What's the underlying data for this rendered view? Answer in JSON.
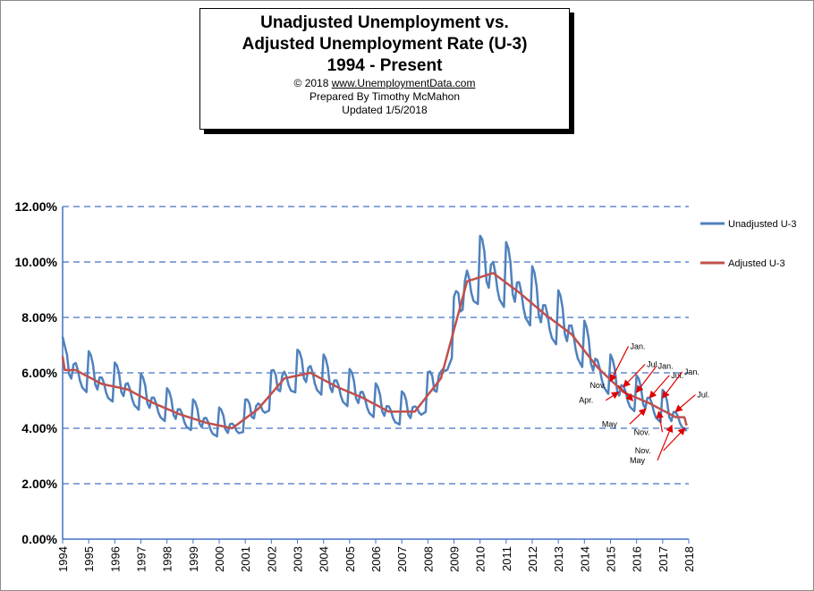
{
  "title": {
    "line1": "Unadjusted Unemployment vs.",
    "line2": "Adjusted Unemployment Rate (U-3)",
    "line3": "1994 - Present",
    "copyright": "© 2018 ",
    "url": "www.UnemploymentData.com",
    "prepared": "Prepared By Timothy McMahon",
    "updated": "Updated 1/5/2018"
  },
  "colors": {
    "unadjusted": "#4f81bd",
    "adjusted": "#c0504d",
    "grid": "#4472c4",
    "arrow": "#e00000"
  },
  "chart_data": {
    "type": "line",
    "xlim": [
      1994,
      2018
    ],
    "ylim": [
      0,
      12
    ],
    "y_ticks": [
      "0.00%",
      "2.00%",
      "4.00%",
      "6.00%",
      "8.00%",
      "10.00%",
      "12.00%"
    ],
    "x_ticks": [
      "1994",
      "1995",
      "1996",
      "1997",
      "1998",
      "1999",
      "2000",
      "2001",
      "2002",
      "2003",
      "2004",
      "2005",
      "2006",
      "2007",
      "2008",
      "2009",
      "2010",
      "2011",
      "2012",
      "2013",
      "2014",
      "2015",
      "2016",
      "2017",
      "2018"
    ],
    "grid": "horizontal dashed",
    "legend_position": "right",
    "series": [
      {
        "name": "Unadjusted U-3",
        "annual_means": [
          6.1,
          5.6,
          5.4,
          4.9,
          4.5,
          4.2,
          4.0,
          4.7,
          5.8,
          6.0,
          5.5,
          5.1,
          4.6,
          4.6,
          5.8,
          9.3,
          9.6,
          8.9,
          8.1,
          7.4,
          6.2,
          5.3,
          4.9,
          4.4
        ],
        "seasonal_pattern": [
          0.95,
          0.85,
          0.55,
          -0.15,
          -0.3,
          0.2,
          0.25,
          0.05,
          -0.3,
          -0.5,
          -0.55,
          -0.6
        ],
        "endpoints": {
          "start": 7.3,
          "end": 3.9
        }
      },
      {
        "name": "Adjusted U-3",
        "annual_means": [
          6.1,
          5.6,
          5.4,
          4.9,
          4.5,
          4.2,
          4.0,
          4.7,
          5.8,
          6.0,
          5.5,
          5.1,
          4.6,
          4.6,
          5.8,
          9.3,
          9.6,
          8.9,
          8.1,
          7.4,
          6.2,
          5.3,
          4.9,
          4.4
        ],
        "endpoints": {
          "start": 6.6,
          "end": 4.1
        }
      }
    ],
    "annotations": [
      {
        "text": "Jan.",
        "x": 2015.0,
        "y": 5.7
      },
      {
        "text": "Jul.",
        "x": 2015.5,
        "y": 5.5
      },
      {
        "text": "Nov.",
        "x": 2015.85,
        "y": 5.0
      },
      {
        "text": "Apr.",
        "x": 2015.3,
        "y": 5.3
      },
      {
        "text": "Jan.",
        "x": 2016.0,
        "y": 5.3
      },
      {
        "text": "Nov.",
        "x": 2016.85,
        "y": 4.6
      },
      {
        "text": "May",
        "x": 2016.35,
        "y": 4.7
      },
      {
        "text": "Jul.",
        "x": 2016.5,
        "y": 5.1
      },
      {
        "text": "Jan.",
        "x": 2017.0,
        "y": 5.1
      },
      {
        "text": "Nov.",
        "x": 2017.85,
        "y": 4.0
      },
      {
        "text": "Jul.",
        "x": 2017.5,
        "y": 4.6
      },
      {
        "text": "May",
        "x": 2017.35,
        "y": 4.1
      }
    ]
  }
}
